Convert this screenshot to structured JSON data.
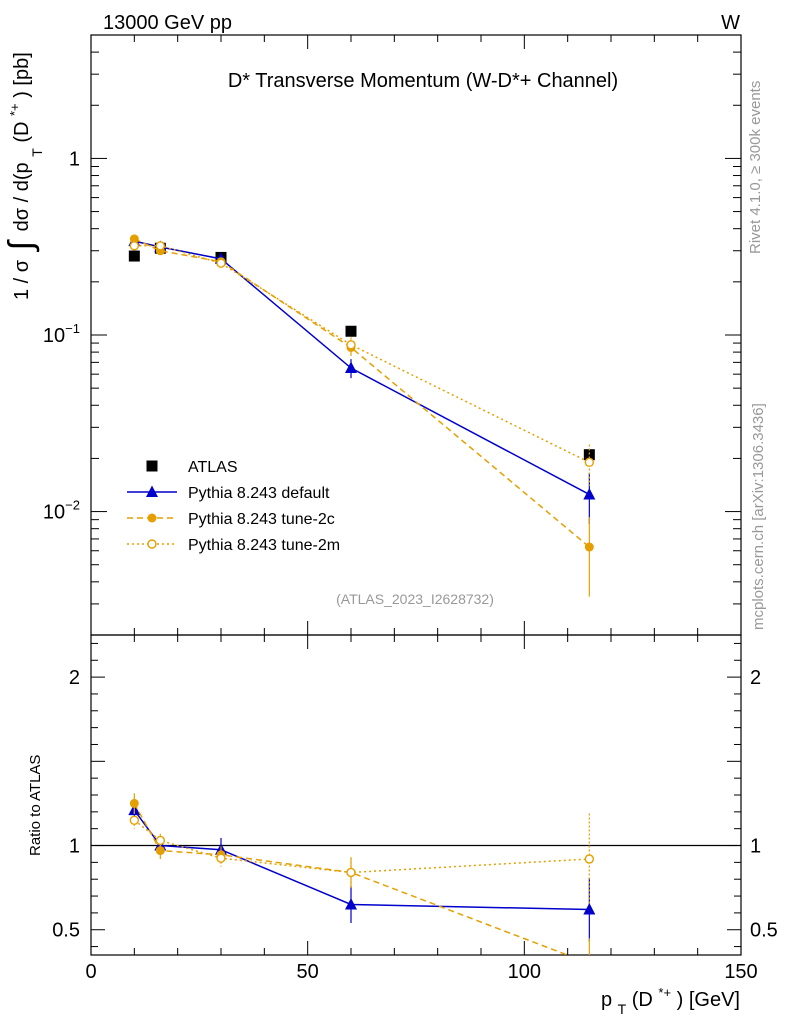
{
  "header": {
    "left": "13000 GeV pp",
    "right": "W"
  },
  "side_labels": {
    "rivet": "Rivet 4.1.0, ≥ 300k events",
    "mcplots": "mcplots.cern.ch [arXiv:1306.3436]"
  },
  "chart_data": {
    "type": "line",
    "title": "D* Transverse Momentum (W-D*+ Channel)",
    "analysis": "(ATLAS_2023_I2628732)",
    "xlabel": "p_T(D*+) [GeV]",
    "ylabel": "1 / σ ∫ dσ / d(p_T (D*+)) [pb]",
    "ylabel_parts": {
      "main": "1 / σ",
      "integrand": "dσ / d(p",
      "sub": "T",
      "particle": " (D",
      "sup": "*+",
      "close": ") [pb]"
    },
    "xlabel_parts": {
      "p": "p",
      "sub": "T",
      "open": "(D",
      "sup": "*+",
      "close": ") [GeV]"
    },
    "ratio_ylabel": "Ratio to ATLAS",
    "xlim": [
      0,
      150
    ],
    "ylim": [
      0.002,
      5
    ],
    "yscale": "log",
    "ratio_ylim": [
      0.35,
      2.25
    ],
    "x_ticks": [
      "0",
      "50",
      "100",
      "150"
    ],
    "x_tick_values": [
      0,
      50,
      100,
      150
    ],
    "y_ticks": [
      {
        "value": 1,
        "label": "1"
      },
      {
        "value": 0.1,
        "label": "10",
        "exp": "−1"
      },
      {
        "value": 0.01,
        "label": "10",
        "exp": "−2"
      }
    ],
    "ratio_ticks": [
      {
        "value": 0.5,
        "label": "0.5"
      },
      {
        "value": 1,
        "label": "1"
      },
      {
        "value": 2,
        "label": "2"
      }
    ],
    "x": [
      10,
      16,
      30,
      60,
      115
    ],
    "series": [
      {
        "name": "ATLAS",
        "marker": "square",
        "color": "#000000",
        "values": [
          0.28,
          0.31,
          0.275,
          0.105,
          0.021
        ]
      },
      {
        "name": "Pythia 8.243 default",
        "marker": "triangle",
        "line": "solid",
        "color": "#0000cc",
        "values": [
          0.34,
          0.315,
          0.27,
          0.065,
          0.0125
        ],
        "errors": [
          0.015,
          0.012,
          0.01,
          0.008,
          0.004
        ],
        "ratio": [
          1.21,
          1.0,
          0.975,
          0.65,
          0.62
        ],
        "ratio_errors": [
          0.05,
          0.04,
          0.07,
          0.11,
          0.19
        ]
      },
      {
        "name": "Pythia 8.243 tune-2c",
        "marker": "circle-filled",
        "line": "dashed",
        "color": "#e69f00",
        "values": [
          0.35,
          0.3,
          0.26,
          0.085,
          0.0063
        ],
        "errors": [
          0.015,
          0.012,
          0.01,
          0.009,
          0.003
        ],
        "ratio": [
          1.25,
          0.97,
          0.945,
          0.84,
          0.3
        ],
        "ratio_errors": [
          0.06,
          0.05,
          0.05,
          0.09,
          0.15
        ]
      },
      {
        "name": "Pythia 8.243 tune-2m",
        "marker": "circle-open",
        "line": "dotted",
        "color": "#e69f00",
        "values": [
          0.32,
          0.32,
          0.255,
          0.088,
          0.019
        ],
        "errors": [
          0.013,
          0.012,
          0.01,
          0.009,
          0.005
        ],
        "ratio": [
          1.15,
          1.03,
          0.925,
          0.84,
          0.92
        ],
        "ratio_errors": [
          0.05,
          0.04,
          0.05,
          0.09,
          0.27
        ]
      }
    ],
    "legend_position": "lower-left"
  }
}
